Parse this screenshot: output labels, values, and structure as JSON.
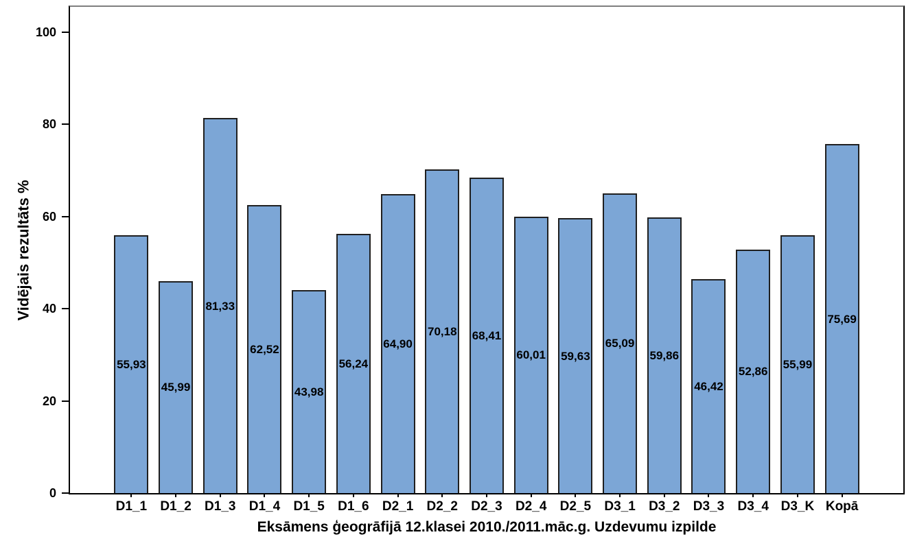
{
  "figure": {
    "background": "#ffffff"
  },
  "chart_data": {
    "type": "bar",
    "title": "",
    "categories": [
      "D1_1",
      "D1_2",
      "D1_3",
      "D1_4",
      "D1_5",
      "D1_6",
      "D2_1",
      "D2_2",
      "D2_3",
      "D2_4",
      "D2_5",
      "D3_1",
      "D3_2",
      "D3_3",
      "D3_4",
      "D3_K",
      "Kopā"
    ],
    "values": [
      55.93,
      45.99,
      81.33,
      62.52,
      43.98,
      56.24,
      64.9,
      70.18,
      68.41,
      60.01,
      59.63,
      65.09,
      59.86,
      46.42,
      52.86,
      55.99,
      75.69
    ],
    "value_labels": [
      "55,93",
      "45,99",
      "81,33",
      "62,52",
      "43,98",
      "56,24",
      "64,90",
      "70,18",
      "68,41",
      "60,01",
      "59,63",
      "65,09",
      "59,86",
      "46,42",
      "52,86",
      "55,99",
      "75,69"
    ],
    "xlabel": "Eksāmens ģeogrāfijā 12.klasei 2010./2011.māc.g. Uzdevumu izpilde",
    "ylabel": "Vidējais rezultāts %",
    "ylim": [
      0,
      105.5
    ],
    "yticks": [
      0,
      20,
      40,
      60,
      80,
      100
    ],
    "grid": false,
    "legend_position": "none",
    "bar_fill_color": "#7CA6D6",
    "bar_border_color": "#1f1f1f",
    "axis_color": "#000000",
    "frame_top_color": "#7f7f7f"
  }
}
